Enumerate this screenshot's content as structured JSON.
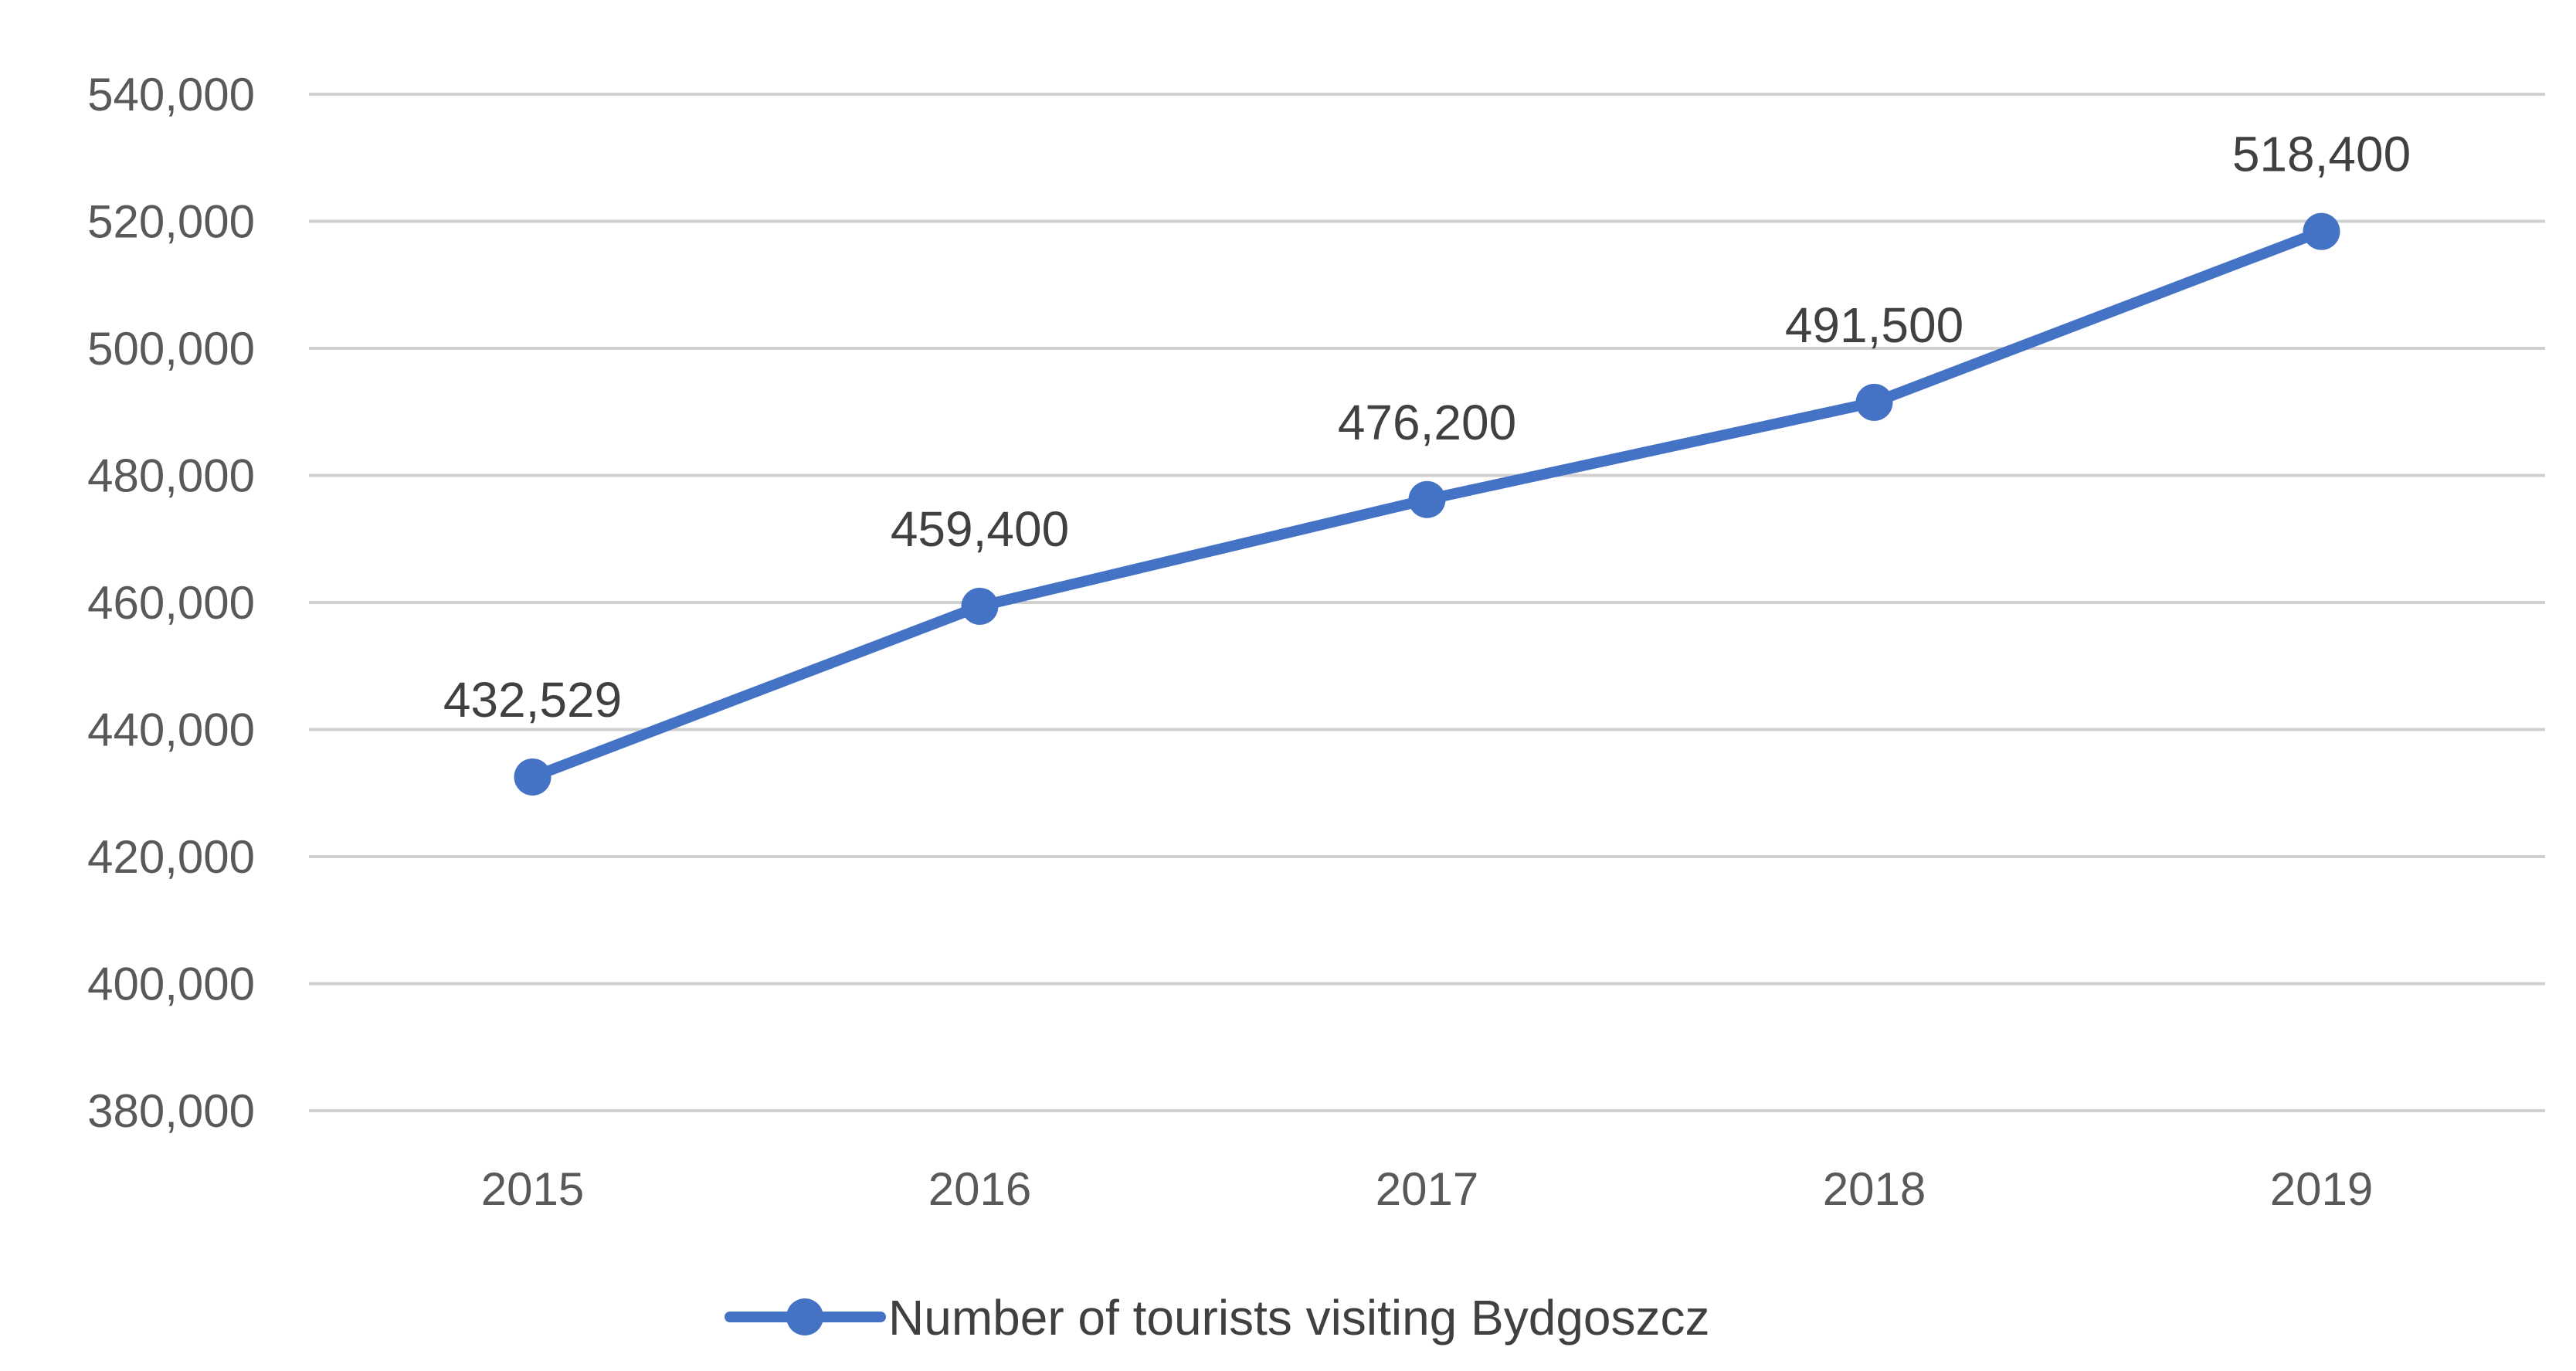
{
  "chart_data": {
    "type": "line",
    "title": "",
    "xlabel": "",
    "ylabel": "",
    "categories": [
      "2015",
      "2016",
      "2017",
      "2018",
      "2019"
    ],
    "series": [
      {
        "name": "Number of tourists visiting Bydgoszcz",
        "values": [
          432529,
          459400,
          476200,
          491500,
          518400
        ],
        "color": "#4472C4"
      }
    ],
    "data_labels": [
      "432,529",
      "459,400",
      "476,200",
      "491,500",
      "518,400"
    ],
    "ylim": [
      380000,
      540000
    ],
    "y_step": 20000,
    "y_tick_labels": [
      "380,000",
      "400,000",
      "420,000",
      "440,000",
      "460,000",
      "480,000",
      "500,000",
      "520,000",
      "540,000"
    ],
    "grid": true,
    "legend_position": "bottom-center"
  }
}
